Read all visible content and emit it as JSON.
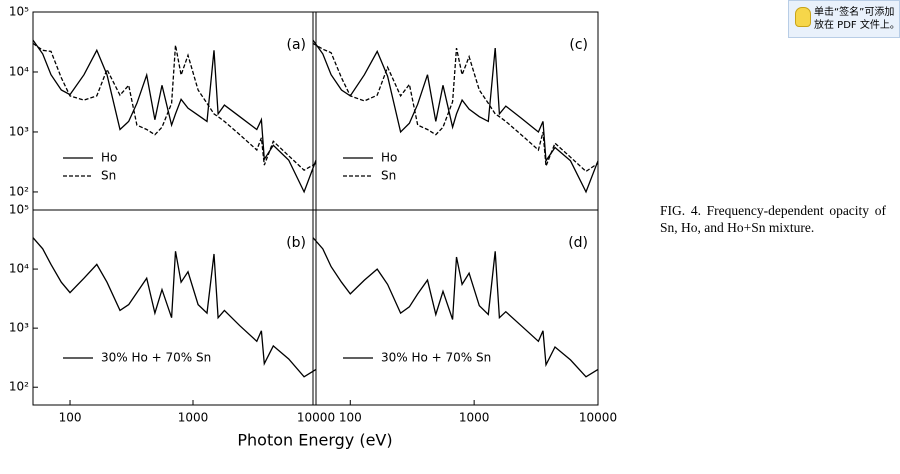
{
  "chart_data": [
    {
      "type": "line",
      "panel_label": "(a)",
      "log_x": true,
      "log_y": true,
      "xlim": [
        50,
        10000
      ],
      "ylim": [
        50,
        100000
      ],
      "yticks": [
        {
          "value": 100000,
          "label": "10⁵"
        },
        {
          "value": 10000,
          "label": "10⁴"
        },
        {
          "value": 1000,
          "label": "10³"
        },
        {
          "value": 100,
          "label": "10²"
        }
      ],
      "legend": "lower left",
      "x": [
        50,
        60,
        70,
        85,
        100,
        130,
        165,
        200,
        255,
        300,
        350,
        420,
        490,
        560,
        670,
        720,
        800,
        910,
        1100,
        1300,
        1480,
        1600,
        1800,
        2400,
        3300,
        3600,
        3800,
        4500,
        6000,
        8000,
        10000
      ],
      "series": [
        {
          "name": "Ho",
          "color": "#000000",
          "dash": "solid",
          "values": [
            34000,
            20000,
            9000,
            5000,
            4200,
            9000,
            23000,
            9000,
            1100,
            1500,
            3000,
            8900,
            1600,
            6000,
            1300,
            2000,
            3500,
            2500,
            1900,
            1500,
            23000,
            2000,
            2800,
            1800,
            1100,
            1600,
            350,
            600,
            340,
            100,
            340
          ]
        },
        {
          "name": "Sn",
          "color": "#000000",
          "dash": "dashed",
          "values": [
            30000,
            23000,
            22000,
            8000,
            4000,
            3400,
            4000,
            11000,
            4100,
            6000,
            1300,
            1100,
            900,
            1200,
            3000,
            28000,
            8900,
            19000,
            5000,
            3000,
            2000,
            1800,
            1500,
            900,
            500,
            800,
            280,
            700,
            400,
            230,
            300
          ]
        }
      ]
    },
    {
      "type": "line",
      "panel_label": "(b)",
      "log_x": true,
      "log_y": true,
      "xlim": [
        50,
        10000
      ],
      "ylim": [
        50,
        100000
      ],
      "xticks": [
        100,
        1000,
        10000
      ],
      "yticks": [
        {
          "value": 100000,
          "label": "10⁵"
        },
        {
          "value": 10000,
          "label": "10⁴"
        },
        {
          "value": 1000,
          "label": "10³"
        },
        {
          "value": 100,
          "label": "10²"
        }
      ],
      "legend": "lower left",
      "x": [
        50,
        60,
        70,
        85,
        100,
        130,
        165,
        200,
        255,
        300,
        350,
        420,
        490,
        560,
        670,
        720,
        800,
        910,
        1100,
        1300,
        1480,
        1600,
        1800,
        2400,
        3300,
        3600,
        3800,
        4500,
        6000,
        8000,
        10000
      ],
      "series": [
        {
          "name": "30% Ho + 70% Sn",
          "color": "#000000",
          "dash": "solid",
          "values": [
            34000,
            22000,
            12000,
            6000,
            4000,
            7000,
            12000,
            6000,
            2000,
            2500,
            4000,
            7000,
            1800,
            4500,
            1500,
            20000,
            6000,
            9000,
            2500,
            1800,
            18000,
            1500,
            2000,
            1100,
            600,
            900,
            250,
            500,
            300,
            150,
            200
          ]
        }
      ]
    },
    {
      "type": "line",
      "panel_label": "(c)",
      "log_x": true,
      "log_y": true,
      "xlim": [
        50,
        10000
      ],
      "ylim": [
        50,
        100000
      ],
      "legend": "lower left",
      "x": [
        50,
        60,
        70,
        85,
        100,
        130,
        165,
        200,
        255,
        300,
        350,
        420,
        490,
        560,
        670,
        720,
        800,
        910,
        1100,
        1300,
        1480,
        1600,
        1800,
        2400,
        3300,
        3600,
        3800,
        4500,
        6000,
        8000,
        10000
      ],
      "series": [
        {
          "name": "Ho",
          "color": "#000000",
          "dash": "solid",
          "values": [
            34000,
            20000,
            9000,
            5000,
            4000,
            9000,
            22000,
            8500,
            1000,
            1400,
            2900,
            9000,
            1500,
            6000,
            1200,
            2000,
            3400,
            2400,
            1800,
            1500,
            25000,
            2000,
            2700,
            1700,
            1000,
            1500,
            330,
            550,
            330,
            100,
            330
          ]
        },
        {
          "name": "Sn",
          "color": "#000000",
          "dash": "dashed",
          "values": [
            30000,
            24000,
            21000,
            8000,
            4000,
            3300,
            4100,
            12000,
            4000,
            6200,
            1300,
            1100,
            900,
            1200,
            3200,
            25000,
            9000,
            18000,
            5000,
            3000,
            2000,
            1800,
            1500,
            900,
            500,
            1000,
            270,
            650,
            380,
            220,
            300
          ]
        }
      ]
    },
    {
      "type": "line",
      "panel_label": "(d)",
      "log_x": true,
      "log_y": true,
      "xlim": [
        50,
        10000
      ],
      "ylim": [
        50,
        100000
      ],
      "xticks": [
        100,
        1000,
        10000
      ],
      "legend": "lower left",
      "x": [
        50,
        60,
        70,
        85,
        100,
        130,
        165,
        200,
        255,
        300,
        350,
        420,
        490,
        560,
        670,
        720,
        800,
        910,
        1100,
        1300,
        1480,
        1600,
        1800,
        2400,
        3300,
        3600,
        3800,
        4500,
        6000,
        8000,
        10000
      ],
      "series": [
        {
          "name": "30% Ho + 70% Sn",
          "color": "#000000",
          "dash": "solid",
          "values": [
            34000,
            22000,
            11000,
            6000,
            3800,
            6500,
            10000,
            5500,
            1800,
            2300,
            3800,
            6500,
            1700,
            4200,
            1400,
            16000,
            5500,
            8500,
            2400,
            1700,
            20000,
            1500,
            1900,
            1100,
            600,
            900,
            240,
            480,
            290,
            150,
            200
          ]
        }
      ]
    }
  ],
  "figure": {
    "xlabel": "Photon Energy (eV)",
    "caption": "FIG. 4. Frequency-dependent opacity of Sn, Ho, and Ho+Sn mixture."
  },
  "tooltip": {
    "lines": [
      "单击“签名”可添加",
      "放在 PDF 文件上。"
    ]
  }
}
